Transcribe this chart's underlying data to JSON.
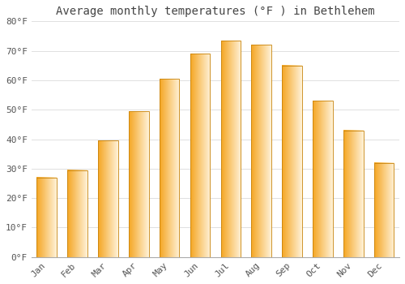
{
  "title": "Average monthly temperatures (°F ) in Bethlehem",
  "months": [
    "Jan",
    "Feb",
    "Mar",
    "Apr",
    "May",
    "Jun",
    "Jul",
    "Aug",
    "Sep",
    "Oct",
    "Nov",
    "Dec"
  ],
  "values": [
    27,
    29.5,
    39.5,
    49.5,
    60.5,
    69,
    73.5,
    72,
    65,
    53,
    43,
    32
  ],
  "bar_left_color": "#F5A623",
  "bar_right_color": "#FFE0A0",
  "bar_edge_color": "#C8830A",
  "ylim": [
    0,
    80
  ],
  "yticks": [
    0,
    10,
    20,
    30,
    40,
    50,
    60,
    70,
    80
  ],
  "ytick_labels": [
    "0°F",
    "10°F",
    "20°F",
    "30°F",
    "40°F",
    "50°F",
    "60°F",
    "70°F",
    "80°F"
  ],
  "background_color": "#FFFFFF",
  "grid_color": "#E0E0E0",
  "title_fontsize": 10,
  "tick_fontsize": 8,
  "bar_width": 0.65
}
